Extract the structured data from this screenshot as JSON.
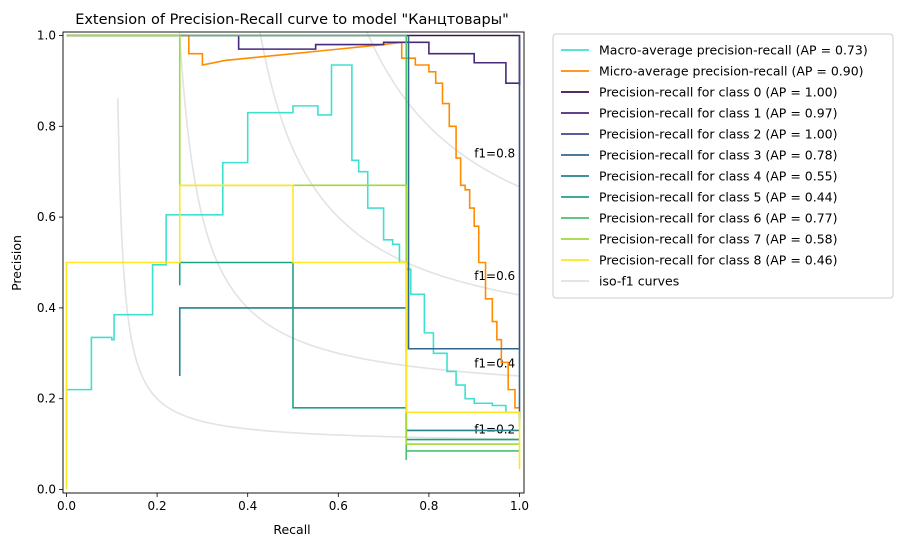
{
  "chart_data": {
    "type": "line",
    "title": "Extension of Precision-Recall curve to model \"Канцтовары\"",
    "xlabel": "Recall",
    "ylabel": "Precision",
    "xlim": [
      0.0,
      1.0
    ],
    "ylim": [
      0.0,
      1.0
    ],
    "xticks": [
      0.0,
      0.2,
      0.4,
      0.6,
      0.8,
      1.0
    ],
    "yticks": [
      0.0,
      0.2,
      0.4,
      0.6,
      0.8,
      1.0
    ],
    "xtick_labels": [
      "0.0",
      "0.2",
      "0.4",
      "0.6",
      "0.8",
      "1.0"
    ],
    "ytick_labels": [
      "0.0",
      "0.2",
      "0.4",
      "0.6",
      "0.8",
      "1.0"
    ],
    "grid": false,
    "legend_position": "outside-right-top",
    "iso_f1": {
      "values": [
        0.2,
        0.4,
        0.6,
        0.8
      ],
      "labels": [
        "f1=0.2",
        "f1=0.4",
        "f1=0.6",
        "f1=0.8"
      ],
      "color": "#d9d9d9"
    },
    "series": [
      {
        "name": "Macro-average precision-recall (AP = 0.73)",
        "color": "#40e0d0",
        "x": [
          0,
          0,
          0.005,
          0.005,
          0.055,
          0.055,
          0.1,
          0.1,
          0.105,
          0.105,
          0.19,
          0.19,
          0.22,
          0.22,
          0.25,
          0.25,
          0.345,
          0.345,
          0.4,
          0.4,
          0.455,
          0.455,
          0.5,
          0.5,
          0.555,
          0.555,
          0.585,
          0.585,
          0.62,
          0.62,
          0.63,
          0.63,
          0.645,
          0.645,
          0.665,
          0.665,
          0.67,
          0.67,
          0.7,
          0.7,
          0.72,
          0.72,
          0.735,
          0.735,
          0.75,
          0.75,
          0.76,
          0.76,
          0.79,
          0.79,
          0.81,
          0.81,
          0.84,
          0.84,
          0.86,
          0.86,
          0.88,
          0.88,
          0.9,
          0.9,
          0.94,
          0.94,
          0.97,
          0.97,
          1.0,
          1.0
        ],
        "y": [
          0.11,
          0.22,
          0.22,
          0.22,
          0.22,
          0.335,
          0.335,
          0.33,
          0.33,
          0.385,
          0.385,
          0.495,
          0.495,
          0.605,
          0.605,
          0.605,
          0.605,
          0.72,
          0.72,
          0.83,
          0.83,
          0.83,
          0.83,
          0.845,
          0.845,
          0.825,
          0.825,
          0.935,
          0.935,
          0.935,
          0.935,
          0.725,
          0.725,
          0.7,
          0.7,
          0.62,
          0.62,
          0.62,
          0.62,
          0.55,
          0.55,
          0.54,
          0.54,
          0.5,
          0.5,
          0.485,
          0.485,
          0.43,
          0.43,
          0.345,
          0.345,
          0.3,
          0.3,
          0.26,
          0.26,
          0.23,
          0.23,
          0.2,
          0.2,
          0.19,
          0.19,
          0.185,
          0.185,
          0.17,
          0.17,
          0.14
        ]
      },
      {
        "name": "Micro-average precision-recall (AP = 0.90)",
        "color": "#ff8c00",
        "x": [
          0,
          0,
          0.27,
          0.27,
          0.3,
          0.3,
          0.35,
          0.4,
          0.45,
          0.5,
          0.55,
          0.6,
          0.65,
          0.7,
          0.74,
          0.74,
          0.77,
          0.77,
          0.8,
          0.8,
          0.815,
          0.815,
          0.83,
          0.83,
          0.845,
          0.845,
          0.86,
          0.86,
          0.87,
          0.87,
          0.88,
          0.88,
          0.89,
          0.89,
          0.9,
          0.9,
          0.91,
          0.91,
          0.925,
          0.925,
          0.94,
          0.94,
          0.95,
          0.95,
          0.96,
          0.96,
          0.975,
          0.975,
          0.99,
          0.99,
          1.0
        ],
        "y": [
          1.0,
          1.0,
          1.0,
          0.96,
          0.96,
          0.935,
          0.945,
          0.95,
          0.955,
          0.96,
          0.965,
          0.97,
          0.975,
          0.98,
          0.985,
          0.95,
          0.95,
          0.935,
          0.935,
          0.92,
          0.92,
          0.895,
          0.895,
          0.85,
          0.85,
          0.8,
          0.8,
          0.73,
          0.73,
          0.67,
          0.67,
          0.66,
          0.66,
          0.62,
          0.62,
          0.58,
          0.58,
          0.5,
          0.5,
          0.42,
          0.42,
          0.37,
          0.37,
          0.33,
          0.33,
          0.28,
          0.28,
          0.22,
          0.22,
          0.18,
          0.18
        ]
      },
      {
        "name": "Precision-recall for class 0 (AP = 1.00)",
        "color": "#3b0f50",
        "x": [
          0,
          1.0,
          1.0
        ],
        "y": [
          1.0,
          1.0,
          0.89
        ]
      },
      {
        "name": "Precision-recall for class 1 (AP = 0.97)",
        "color": "#482a7a",
        "x": [
          0.38,
          0.38,
          0.55,
          0.55,
          0.7,
          0.7,
          0.8,
          0.8,
          0.9,
          0.9,
          0.97,
          0.97,
          1.0
        ],
        "y": [
          1.0,
          0.97,
          0.97,
          0.98,
          0.98,
          0.985,
          0.985,
          0.96,
          0.96,
          0.94,
          0.94,
          0.895,
          0.895
        ]
      },
      {
        "name": "Precision-recall for class 2 (AP = 1.00)",
        "color": "#3e4a89",
        "x": [
          1.0,
          1.0
        ],
        "y": [
          1.0,
          0.31
        ]
      },
      {
        "name": "Precision-recall for class 3 (AP = 0.78)",
        "color": "#31678e",
        "x": [
          0.755,
          0.755,
          1.0,
          1.0
        ],
        "y": [
          1.0,
          0.31,
          0.31,
          0.155
        ]
      },
      {
        "name": "Precision-recall for class 4 (AP = 0.55)",
        "color": "#26828e",
        "x": [
          0.25,
          0.25,
          0.5,
          0.5,
          0.75,
          0.75,
          1.0
        ],
        "y": [
          0.25,
          0.4,
          0.4,
          0.4,
          0.4,
          0.13,
          0.13
        ]
      },
      {
        "name": "Precision-recall for class 5 (AP = 0.44)",
        "color": "#1fa187",
        "x": [
          0.25,
          0.25,
          0.5,
          0.5,
          0.75,
          0.75,
          1.0
        ],
        "y": [
          0.45,
          0.5,
          0.5,
          0.18,
          0.18,
          0.11,
          0.11
        ]
      },
      {
        "name": "Precision-recall for class 6 (AP = 0.77)",
        "color": "#4ac16d",
        "x": [
          0,
          0.75,
          0.75,
          0.75,
          1.0
        ],
        "y": [
          1.0,
          1.0,
          0.065,
          0.085,
          0.085
        ]
      },
      {
        "name": "Precision-recall for class 7 (AP = 0.58)",
        "color": "#a0da39",
        "x": [
          0,
          0.25,
          0.25,
          0.25,
          0.75,
          0.75,
          1.0
        ],
        "y": [
          1.0,
          1.0,
          0.67,
          0.67,
          0.67,
          0.1,
          0.1
        ]
      },
      {
        "name": "Precision-recall for class 8 (AP = 0.46)",
        "color": "#fde725",
        "x": [
          0,
          0,
          0.25,
          0.25,
          0.5,
          0.5,
          0.75,
          0.75,
          1.0,
          1.0
        ],
        "y": [
          0.0,
          0.5,
          0.5,
          0.67,
          0.67,
          0.5,
          0.5,
          0.17,
          0.17,
          0.045
        ]
      }
    ],
    "legend_extra": [
      {
        "name": "iso-f1 curves",
        "color": "#d9d9d9"
      }
    ]
  }
}
